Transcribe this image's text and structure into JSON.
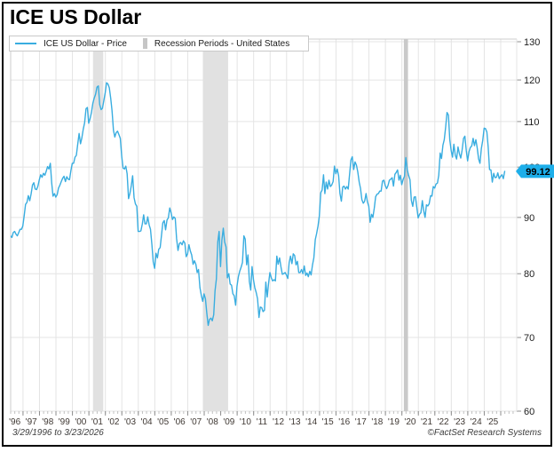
{
  "header": {
    "title": "ICE US Dollar"
  },
  "legend": {
    "price_label": "ICE US Dollar - Price",
    "recession_label": "Recession Periods - United States"
  },
  "footer": {
    "date_range": "3/29/1996 to 3/23/2026",
    "source": "©FactSet Research Systems"
  },
  "colors": {
    "line": "#39ade0",
    "badge_bg": "#1daee9",
    "badge_text": "#000000",
    "grid": "#e4e4e4",
    "plot_border": "#cccccc",
    "yaxis_text": "#1c1c1c",
    "xaxis_text": "#3f3833",
    "tick_major": "#8f8f8f",
    "tick_minor": "#c0c0c0",
    "legend_line_swatch": "#39ade0",
    "legend_band_swatch": "#c6c6c6"
  },
  "chart_data": {
    "type": "line",
    "title": "ICE US Dollar",
    "y_scale": "log",
    "ylim": [
      60,
      130
    ],
    "yticks": [
      130,
      120,
      110,
      100,
      90,
      80,
      70,
      60
    ],
    "x_range_years": [
      1996.25,
      2026.97
    ],
    "x_tick_labels": [
      "'96",
      "'97",
      "'98",
      "'99",
      "'00",
      "'01",
      "'02",
      "'03",
      "'04",
      "'05",
      "'06",
      "'07",
      "'08",
      "'09",
      "'10",
      "'11",
      "'12",
      "'13",
      "'14",
      "'15",
      "'16",
      "'17",
      "'18",
      "'19",
      "'20",
      "'21",
      "'22",
      "'23",
      "'24",
      "'25"
    ],
    "grid": true,
    "legend_position": "top-left",
    "last_price": 99.12,
    "last_price_label": "99.12",
    "recession_periods": [
      {
        "start": 2001.25,
        "end": 2001.87,
        "color": "#e1e1e1"
      },
      {
        "start": 2007.92,
        "end": 2009.45,
        "color": "#e1e1e1"
      },
      {
        "start": 2020.12,
        "end": 2020.37,
        "color": "#c9c9c9"
      }
    ],
    "series": [
      {
        "name": "ICE US Dollar - Price",
        "x_start": 1996.24,
        "x_step": 0.083333,
        "values": [
          86.6,
          86.3,
          87.2,
          87.4,
          86.9,
          86.6,
          87.2,
          87.8,
          87.8,
          88.4,
          90.4,
          92.5,
          92.9,
          94.2,
          93.2,
          94.5,
          96.3,
          96.8,
          95.5,
          95.4,
          96.1,
          97.4,
          98.4,
          97.9,
          98.7,
          98.3,
          99.1,
          100.1,
          99.6,
          100.8,
          96.8,
          94.1,
          94.6,
          93.9,
          94.4,
          95.7,
          96.3,
          97.0,
          97.7,
          98.1,
          97.0,
          98.0,
          97.5,
          97.4,
          99.2,
          100.8,
          100.8,
          102.1,
          102.5,
          105.0,
          107.3,
          105.0,
          106.3,
          108.3,
          109.7,
          113.0,
          113.3,
          109.6,
          110.7,
          112.1,
          114.3,
          115.5,
          116.5,
          118.2,
          118.5,
          114.0,
          112.8,
          113.1,
          115.0,
          116.8,
          119.3,
          119.0,
          118.1,
          115.5,
          112.5,
          108.0,
          106.5,
          107.5,
          107.8,
          107.0,
          106.2,
          102.3,
          99.8,
          99.6,
          100.2,
          98.6,
          93.6,
          94.6,
          96.2,
          98.2,
          93.8,
          92.6,
          92.1,
          87.4,
          87.4,
          87.5,
          88.8,
          90.5,
          88.8,
          88.8,
          90.1,
          88.6,
          87.8,
          85.0,
          82.0,
          80.9,
          83.5,
          82.7,
          84.2,
          84.5,
          86.7,
          89.0,
          89.4,
          87.7,
          89.5,
          89.9,
          91.8,
          90.9,
          89.6,
          90.1,
          89.8,
          86.1,
          84.0,
          85.2,
          85.4,
          85.0,
          85.7,
          85.3,
          82.9,
          83.4,
          85.0,
          83.9,
          83.2,
          81.6,
          82.2,
          81.6,
          80.2,
          80.7,
          77.7,
          76.5,
          75.5,
          76.7,
          75.9,
          73.7,
          71.8,
          72.7,
          72.9,
          72.5,
          73.4,
          77.2,
          79.1,
          85.5,
          87.4,
          81.2,
          85.8,
          88.0,
          85.5,
          84.6,
          79.3,
          80.0,
          78.3,
          78.1,
          76.7,
          76.4,
          74.9,
          77.9,
          79.5,
          80.4,
          81.1,
          81.9,
          86.6,
          86.0,
          81.5,
          83.2,
          78.7,
          77.3,
          81.2,
          79.0,
          77.7,
          76.9,
          75.9,
          73.0,
          74.6,
          74.5,
          73.9,
          74.1,
          78.6,
          76.2,
          78.4,
          80.2,
          79.3,
          78.8,
          79.0,
          78.8,
          83.0,
          81.6,
          82.7,
          81.2,
          79.9,
          80.0,
          80.2,
          79.8,
          79.2,
          81.9,
          83.0,
          81.7,
          83.4,
          83.1,
          81.5,
          82.1,
          80.2,
          80.2,
          80.7,
          80.0,
          81.3,
          79.7,
          80.1,
          79.5,
          80.4,
          79.8,
          81.5,
          82.7,
          85.9,
          87.0,
          88.4,
          90.3,
          94.8,
          95.3,
          98.4,
          94.6,
          96.9,
          95.5,
          97.3,
          96.0,
          96.3,
          97.0,
          100.2,
          98.6,
          99.6,
          98.2,
          94.6,
          93.1,
          95.9,
          96.1,
          95.5,
          96.0,
          95.5,
          98.4,
          101.5,
          102.2,
          99.5,
          101.1,
          100.4,
          99.0,
          96.9,
          95.6,
          93.4,
          92.7,
          93.1,
          94.6,
          93.0,
          92.1,
          89.1,
          90.6,
          90.0,
          91.8,
          94.0,
          94.5,
          94.6,
          95.1,
          95.1,
          97.1,
          97.3,
          96.2,
          95.6,
          96.2,
          97.3,
          97.5,
          97.8,
          96.1,
          98.5,
          98.9,
          99.4,
          97.3,
          98.3,
          96.4,
          97.4,
          98.1,
          102.0,
          99.5,
          98.3,
          97.4,
          93.3,
          92.1,
          93.9,
          94.0,
          91.9,
          89.9,
          90.6,
          90.9,
          93.2,
          91.3,
          90.0,
          92.4,
          92.2,
          92.6,
          94.2,
          94.1,
          96.0,
          95.7,
          96.5,
          96.7,
          98.3,
          103.0,
          101.8,
          104.7,
          105.9,
          108.8,
          112.1,
          111.5,
          105.9,
          103.5,
          102.1,
          104.9,
          102.5,
          101.7,
          104.3,
          102.9,
          101.9,
          103.6,
          106.2,
          106.7,
          103.5,
          101.3,
          103.3,
          104.2,
          104.5,
          106.2,
          104.6,
          105.9,
          104.1,
          101.7,
          100.8,
          104.0,
          105.7,
          108.5,
          108.4,
          107.6,
          104.2,
          99.5,
          99.4,
          96.9,
          98.7,
          97.8,
          97.9,
          98.8,
          97.6,
          98.1,
          98.4,
          97.6,
          99.12
        ]
      }
    ]
  }
}
